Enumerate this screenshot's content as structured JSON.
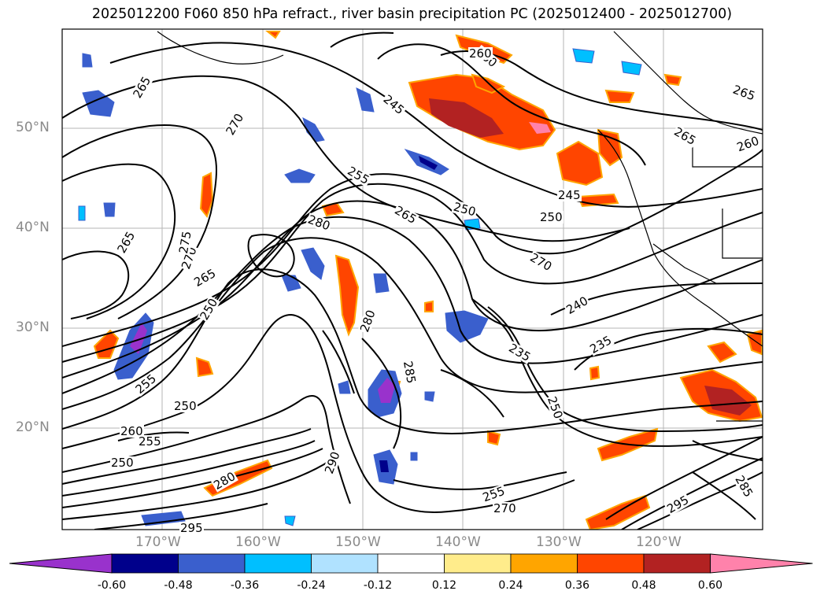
{
  "title": "2025012200 F060 850 hPa refract., river basin precipitation PC (2025012400 - 2025012700)",
  "lat_labels": [
    "50°N",
    "40°N",
    "30°N",
    "20°N"
  ],
  "lon_labels": [
    "170°W",
    "160°W",
    "150°W",
    "140°W",
    "130°W",
    "120°W"
  ],
  "contour_labels": [
    "265",
    "270",
    "245",
    "260",
    "255",
    "250",
    "265",
    "280",
    "265",
    "270",
    "275",
    "265",
    "240",
    "235",
    "280",
    "285",
    "260",
    "250",
    "255",
    "250",
    "290",
    "295",
    "280",
    "250",
    "255",
    "260",
    "265",
    "250",
    "270",
    "245",
    "250",
    "255",
    "235",
    "295",
    "285",
    "270",
    "265",
    "260"
  ],
  "colorbar": {
    "ticks": [
      "-0.60",
      "-0.48",
      "-0.36",
      "-0.24",
      "-0.12",
      "0.12",
      "0.24",
      "0.36",
      "0.48",
      "0.60"
    ],
    "colors": [
      "#9932cc",
      "#00008b",
      "#3a5fcd",
      "#00bfff",
      "#b0e2ff",
      "#ffffff",
      "#ffec8b",
      "#ffa500",
      "#ff4500",
      "#b22222",
      "#ff82ab"
    ]
  }
}
